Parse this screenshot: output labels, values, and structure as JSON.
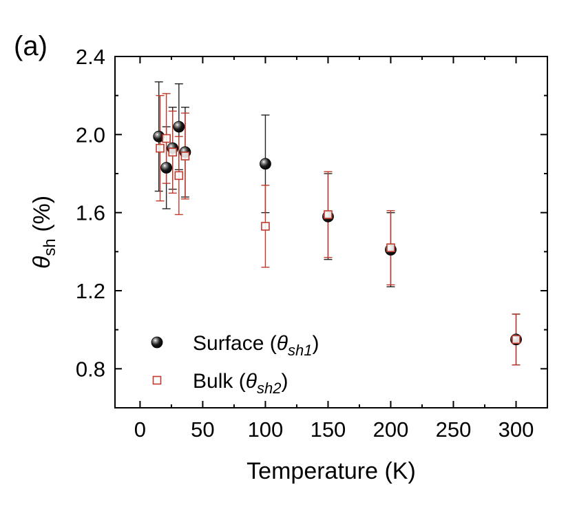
{
  "panel_label": "(a)",
  "chart_data": {
    "type": "scatter",
    "xlabel": "Temperature (K)",
    "ylabel": {
      "symbol": "θ",
      "subscript": "sh",
      "unit": "(%)"
    },
    "xlim": [
      -20,
      325
    ],
    "ylim": [
      0.6,
      2.4
    ],
    "xticks": [
      0,
      50,
      100,
      150,
      200,
      250,
      300
    ],
    "yticks": [
      0.8,
      1.2,
      1.6,
      2.0,
      2.4
    ],
    "ytick_labels": [
      "0.8",
      "1.2",
      "1.6",
      "2.0",
      "2.4"
    ],
    "grid": false,
    "legend_position": "bottom-left",
    "series": [
      {
        "id": "surface",
        "legend": {
          "prefix": "Surface (",
          "symbol": "θ",
          "sub": "sh1",
          "suffix": ")"
        },
        "marker": "filled-sphere",
        "color": "#000000",
        "error_color": "#222222",
        "points": [
          {
            "x": 15,
            "y": 1.99,
            "err": 0.28
          },
          {
            "x": 21,
            "y": 1.83,
            "err": 0.21
          },
          {
            "x": 26,
            "y": 1.93,
            "err": 0.21
          },
          {
            "x": 31,
            "y": 2.04,
            "err": 0.22
          },
          {
            "x": 36,
            "y": 1.91,
            "err": 0.23
          },
          {
            "x": 100,
            "y": 1.85,
            "err": 0.25
          },
          {
            "x": 150,
            "y": 1.58,
            "err": 0.22
          },
          {
            "x": 200,
            "y": 1.41,
            "err": 0.19
          },
          {
            "x": 300,
            "y": 0.95,
            "err": 0.13
          }
        ]
      },
      {
        "id": "bulk",
        "legend": {
          "prefix": "Bulk (",
          "symbol": "θ",
          "sub": "sh2",
          "suffix": ")"
        },
        "marker": "open-square",
        "color": "#c0392b",
        "error_color": "#c0392b",
        "points": [
          {
            "x": 16,
            "y": 1.93,
            "err": 0.27
          },
          {
            "x": 21,
            "y": 1.98,
            "err": 0.23
          },
          {
            "x": 26,
            "y": 1.91,
            "err": 0.21
          },
          {
            "x": 31,
            "y": 1.79,
            "err": 0.2
          },
          {
            "x": 36,
            "y": 1.89,
            "err": 0.22
          },
          {
            "x": 100,
            "y": 1.53,
            "err": 0.21
          },
          {
            "x": 150,
            "y": 1.59,
            "err": 0.22
          },
          {
            "x": 200,
            "y": 1.42,
            "err": 0.19
          },
          {
            "x": 300,
            "y": 0.95,
            "err": 0.13
          }
        ]
      }
    ]
  }
}
